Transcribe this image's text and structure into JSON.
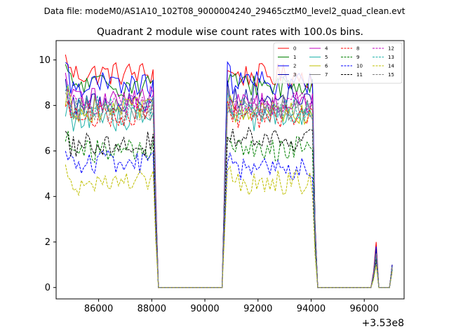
{
  "figure": {
    "suptitle": "Data file: modeM0/AS1A10_102T08_9000004240_29465cztM0_level2_quad_clean.evt",
    "title": "Quadrant 2 module wise count rates with 100.0s bins.",
    "offset_text": "+3.53e8"
  },
  "chart_data": {
    "type": "line",
    "title": "Quadrant 2 module wise count rates with 100.0s bins.",
    "xlabel": "",
    "ylabel": "",
    "x_offset": 353000000,
    "xlim": [
      84400,
      97500
    ],
    "ylim": [
      -0.5,
      10.85
    ],
    "xticks": [
      86000,
      88000,
      90000,
      92000,
      94000,
      96000
    ],
    "yticks": [
      0,
      2,
      4,
      6,
      8,
      10
    ],
    "xtick_labels": [
      "86000",
      "88000",
      "90000",
      "92000",
      "94000",
      "96000"
    ],
    "ytick_labels": [
      "0",
      "2",
      "4",
      "6",
      "8",
      "10"
    ],
    "grid": false,
    "legend_position": "top-right",
    "segments": [
      {
        "x_start": 84750,
        "x_end": 88250,
        "step": 100
      },
      {
        "x_start": 88350,
        "x_end": 90650,
        "step": 100
      },
      {
        "x_start": 90750,
        "x_end": 94050,
        "step": 100
      },
      {
        "x_start": 94150,
        "x_end": 94250,
        "step": 100
      },
      {
        "x_start": 94350,
        "x_end": 96150,
        "step": 100
      },
      {
        "x_start": 96250,
        "x_end": 96550,
        "step": 100
      },
      {
        "x_start": 96650,
        "x_end": 96950,
        "step": 100
      },
      {
        "x_start": 97050,
        "x_end": 97050,
        "step": 100
      }
    ],
    "series": [
      {
        "name": "0",
        "color": "#ff0000",
        "dash": "solid",
        "level1": 9.4,
        "level2": 9.3,
        "spike": 2.0,
        "end": 1.0
      },
      {
        "name": "1",
        "color": "#008000",
        "dash": "solid",
        "level1": 8.9,
        "level2": 8.9,
        "spike": 1.6,
        "end": 0.9
      },
      {
        "name": "2",
        "color": "#0000ff",
        "dash": "solid",
        "level1": 8.9,
        "level2": 9.0,
        "spike": 1.8,
        "end": 1.0
      },
      {
        "name": "3",
        "color": "#0000aa",
        "dash": "solid",
        "level1": 8.1,
        "level2": 8.4,
        "spike": 1.7,
        "end": 1.0
      },
      {
        "name": "4",
        "color": "#c000c0",
        "dash": "solid",
        "level1": 8.3,
        "level2": 8.1,
        "spike": 1.5,
        "end": 0.9
      },
      {
        "name": "5",
        "color": "#20b2aa",
        "dash": "solid",
        "level1": 7.4,
        "level2": 7.4,
        "spike": 1.4,
        "end": 0.9
      },
      {
        "name": "6",
        "color": "#bfbf00",
        "dash": "solid",
        "level1": 7.8,
        "level2": 7.7,
        "spike": 1.4,
        "end": 0.9
      },
      {
        "name": "7",
        "color": "#808080",
        "dash": "solid",
        "level1": 7.9,
        "level2": 7.9,
        "spike": 1.5,
        "end": 0.9
      },
      {
        "name": "8",
        "color": "#ff0000",
        "dash": "dashed",
        "level1": 7.6,
        "level2": 7.5,
        "spike": 1.5,
        "end": 0.9
      },
      {
        "name": "9",
        "color": "#008000",
        "dash": "dashed",
        "level1": 6.0,
        "level2": 6.1,
        "spike": 1.2,
        "end": 0.8
      },
      {
        "name": "10",
        "color": "#0000ff",
        "dash": "dashed",
        "level1": 5.5,
        "level2": 5.2,
        "spike": 1.1,
        "end": 0.7
      },
      {
        "name": "11",
        "color": "#000000",
        "dash": "dashed",
        "level1": 6.3,
        "level2": 6.5,
        "spike": 1.3,
        "end": 0.8
      },
      {
        "name": "12",
        "color": "#c000c0",
        "dash": "dashed",
        "level1": 8.0,
        "level2": 8.0,
        "spike": 1.5,
        "end": 0.9
      },
      {
        "name": "13",
        "color": "#20b2aa",
        "dash": "dashed",
        "level1": 7.9,
        "level2": 7.8,
        "spike": 1.5,
        "end": 0.9
      },
      {
        "name": "14",
        "color": "#bfbf00",
        "dash": "dashed",
        "level1": 4.6,
        "level2": 4.6,
        "spike": 1.0,
        "end": 0.7
      },
      {
        "name": "15",
        "color": "#808080",
        "dash": "dashed",
        "level1": 7.7,
        "level2": 7.8,
        "spike": 1.5,
        "end": 0.9
      }
    ]
  }
}
